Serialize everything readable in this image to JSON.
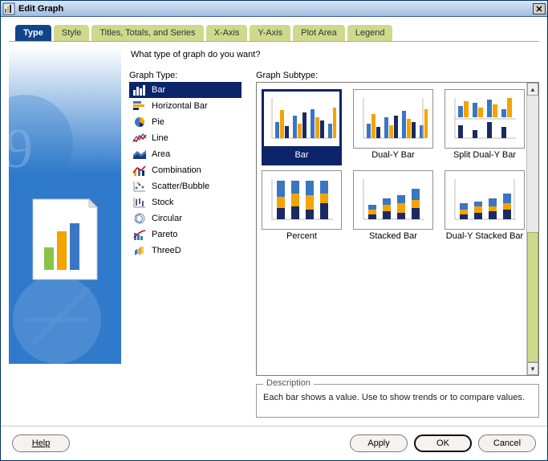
{
  "window": {
    "title": "Edit Graph"
  },
  "tabs": [
    {
      "key": "type",
      "label": "Type",
      "active": true
    },
    {
      "key": "style",
      "label": "Style",
      "active": false
    },
    {
      "key": "titles",
      "label": "Titles, Totals, and Series",
      "active": false
    },
    {
      "key": "xaxis",
      "label": "X-Axis",
      "active": false
    },
    {
      "key": "yaxis",
      "label": "Y-Axis",
      "active": false
    },
    {
      "key": "plot",
      "label": "Plot Area",
      "active": false
    },
    {
      "key": "legend",
      "label": "Legend",
      "active": false
    }
  ],
  "prompt": "What type of graph do you want?",
  "graph_type_label": "Graph Type:",
  "graph_subtype_label": "Graph Subtype:",
  "types": [
    {
      "key": "bar",
      "label": "Bar",
      "selected": true
    },
    {
      "key": "hbar",
      "label": "Horizontal Bar"
    },
    {
      "key": "pie",
      "label": "Pie"
    },
    {
      "key": "line",
      "label": "Line"
    },
    {
      "key": "area",
      "label": "Area"
    },
    {
      "key": "combo",
      "label": "Combination"
    },
    {
      "key": "scatter",
      "label": "Scatter/Bubble"
    },
    {
      "key": "stock",
      "label": "Stock"
    },
    {
      "key": "circular",
      "label": "Circular"
    },
    {
      "key": "pareto",
      "label": "Pareto"
    },
    {
      "key": "threed",
      "label": "ThreeD"
    }
  ],
  "subtypes": [
    {
      "key": "bar",
      "label": "Bar",
      "selected": true
    },
    {
      "key": "dualy",
      "label": "Dual-Y Bar"
    },
    {
      "key": "splitdualy",
      "label": "Split Dual-Y Bar"
    },
    {
      "key": "percent",
      "label": "Percent"
    },
    {
      "key": "stacked",
      "label": "Stacked Bar"
    },
    {
      "key": "dualystacked",
      "label": "Dual-Y Stacked Bar"
    }
  ],
  "description": {
    "title": "Description",
    "text": "Each bar shows a value. Use to show trends or to compare values."
  },
  "buttons": {
    "help": "Help",
    "apply": "Apply",
    "ok": "OK",
    "cancel": "Cancel"
  },
  "colors": {
    "accent": "#114488",
    "select": "#0b246a",
    "tab_bg": "#cfd98c",
    "blue": "#3a76c2",
    "orange": "#f4a300",
    "navy": "#1a2a60",
    "light": "#9fc0e8"
  }
}
